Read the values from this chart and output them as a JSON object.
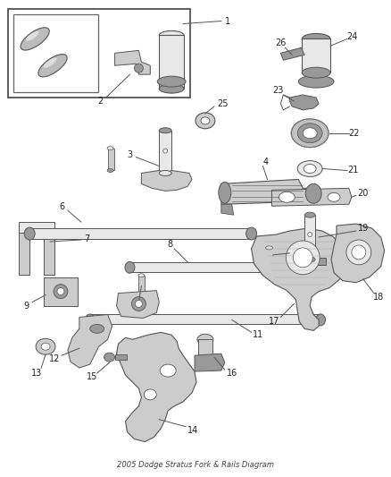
{
  "title": "2005 Dodge Stratus Fork & Rails Diagram",
  "background_color": "#ffffff",
  "figsize": [
    4.38,
    5.33
  ],
  "dpi": 100,
  "line_color": "#555555",
  "label_fontsize": 7.0,
  "label_color": "#222222",
  "part_color": "#cccccc",
  "part_color_dark": "#999999",
  "part_color_light": "#e8e8e8"
}
